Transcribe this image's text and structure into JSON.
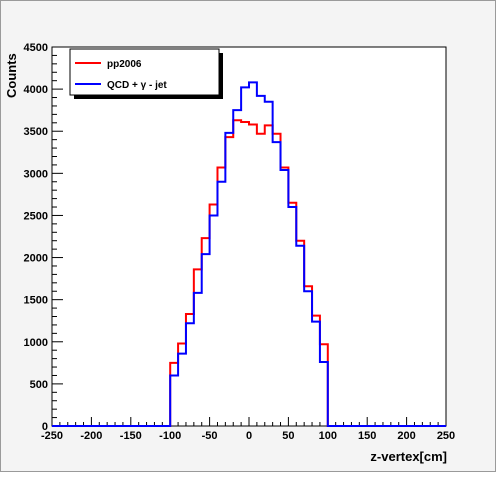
{
  "chart_data": {
    "type": "histogram",
    "xlabel": "z-vertex[cm]",
    "ylabel": "Counts",
    "xlim": [
      -250,
      250
    ],
    "ylim": [
      0,
      4500
    ],
    "x_ticks": [
      -250,
      -200,
      -150,
      -100,
      -50,
      0,
      50,
      100,
      150,
      200,
      250
    ],
    "x_tick_labels": [
      "-250",
      "-200",
      "-150",
      "-100",
      "-50",
      "0",
      "50",
      "100",
      "150",
      "200",
      "250"
    ],
    "y_ticks": [
      0,
      500,
      1000,
      1500,
      2000,
      2500,
      3000,
      3500,
      4000,
      4500
    ],
    "y_tick_labels": [
      "0",
      "500",
      "1000",
      "1500",
      "2000",
      "2500",
      "3000",
      "3500",
      "4000",
      "4500"
    ],
    "grid": false,
    "legend_position": "top-left",
    "bin_edges": [
      -250,
      -240,
      -230,
      -220,
      -210,
      -200,
      -190,
      -180,
      -170,
      -160,
      -150,
      -140,
      -130,
      -120,
      -110,
      -100,
      -90,
      -80,
      -70,
      -60,
      -50,
      -40,
      -30,
      -20,
      -10,
      0,
      10,
      20,
      30,
      40,
      50,
      60,
      70,
      80,
      90,
      100,
      110,
      120,
      130,
      140,
      150,
      160,
      170,
      180,
      190,
      200,
      210,
      220,
      230,
      240,
      250
    ],
    "series": [
      {
        "name": "pp2006",
        "color": "#ff0000",
        "values": [
          0,
          0,
          0,
          0,
          0,
          0,
          0,
          0,
          0,
          0,
          0,
          0,
          0,
          0,
          0,
          750,
          980,
          1330,
          1860,
          2230,
          2630,
          3070,
          3430,
          3630,
          3610,
          3580,
          3470,
          3570,
          3470,
          3070,
          2650,
          2200,
          1660,
          1310,
          970,
          0,
          0,
          0,
          0,
          0,
          0,
          0,
          0,
          0,
          0,
          0,
          0,
          0,
          0,
          0
        ]
      },
      {
        "name": "QCD + γ - jet",
        "color": "#0000ff",
        "values": [
          0,
          0,
          0,
          0,
          0,
          0,
          0,
          0,
          0,
          0,
          0,
          0,
          0,
          0,
          0,
          600,
          860,
          1220,
          1580,
          2040,
          2500,
          2900,
          3480,
          3750,
          4020,
          4080,
          3920,
          3850,
          3370,
          3040,
          2600,
          2140,
          1600,
          1240,
          760,
          0,
          0,
          0,
          0,
          0,
          0,
          0,
          0,
          0,
          0,
          0,
          0,
          0,
          0,
          0
        ]
      }
    ]
  }
}
